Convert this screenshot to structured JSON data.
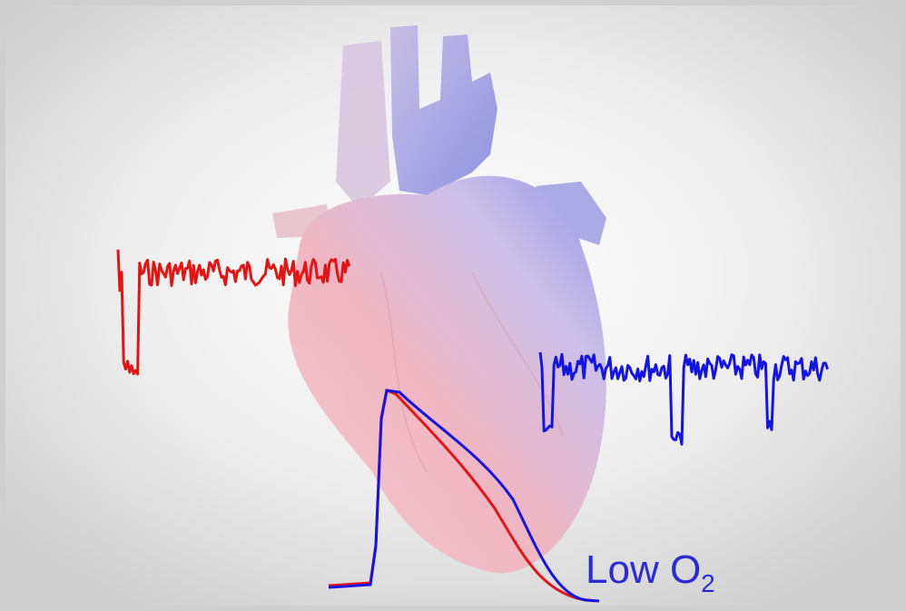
{
  "caption": {
    "text": "Low O",
    "subscript": "2"
  }
}
